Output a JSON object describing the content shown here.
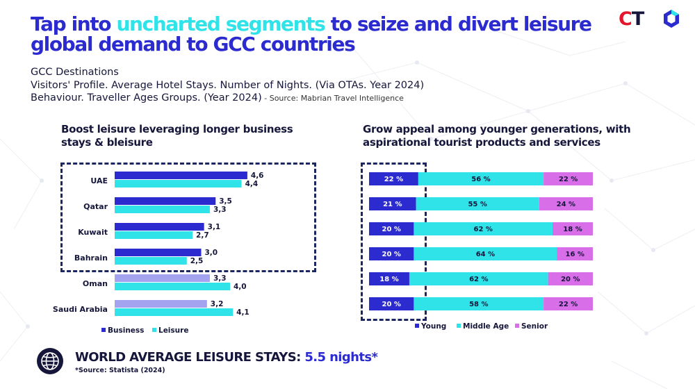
{
  "title": {
    "pre": "Tap into ",
    "highlight": "uncharted segments",
    "post": " to seize and divert leisure global demand to GCC countries"
  },
  "logo": {
    "c": "C",
    "t": "T"
  },
  "subtitle": {
    "line1": "GCC Destinations",
    "line2": "Visitors' Profile. Average Hotel Stays. Number of Nights. (Via OTAs. Year 2024)",
    "line3": "Behaviour. Traveller Ages Groups. (Year 2024)",
    "source": " - Source: Mabrian Travel Intelligence"
  },
  "left_heading": {
    "line1": "Boost leisure leveraging longer business",
    "line2": "stays & bleisure"
  },
  "right_heading": {
    "line1": "Grow appeal among younger generations, with",
    "line2": "aspirational tourist products and services"
  },
  "chart_data": [
    {
      "type": "bar",
      "orientation": "horizontal",
      "categories": [
        "UAE",
        "Qatar",
        "Kuwait",
        "Bahrain",
        "Oman",
        "Saudi Arabia"
      ],
      "series": [
        {
          "name": "Business",
          "values": [
            4.6,
            3.5,
            3.1,
            3.0,
            3.3,
            3.2
          ],
          "labels": [
            "4,6",
            "3,5",
            "3,1",
            "3,0",
            "3,3",
            "3,2"
          ]
        },
        {
          "name": "Leisure",
          "values": [
            4.4,
            3.3,
            2.7,
            2.5,
            4.0,
            4.1
          ],
          "labels": [
            "4,4",
            "3,3",
            "2,7",
            "2,5",
            "4,0",
            "4,1"
          ]
        }
      ],
      "highlighted_categories": [
        "UAE",
        "Qatar",
        "Kuwait",
        "Bahrain"
      ],
      "legend": "bottom",
      "colors": {
        "business": "#2b2bcf",
        "leisure": "#2fe3e8",
        "business_muted": "#a3a3ef",
        "leisure_muted": "#2fe3e8"
      }
    },
    {
      "type": "bar",
      "orientation": "horizontal",
      "stacked": true,
      "percent": true,
      "rows": 6,
      "series": [
        {
          "name": "Young",
          "values": [
            22,
            21,
            20,
            20,
            18,
            20
          ],
          "labels": [
            "22 %",
            "21 %",
            "20 %",
            "20 %",
            "18 %",
            "20 %"
          ]
        },
        {
          "name": "Middle Age",
          "values": [
            56,
            55,
            62,
            64,
            62,
            58
          ],
          "labels": [
            "56 %",
            "55 %",
            "62 %",
            "64 %",
            "62 %",
            "58 %"
          ]
        },
        {
          "name": "Senior",
          "values": [
            22,
            24,
            18,
            16,
            20,
            22
          ],
          "labels": [
            "22 %",
            "24 %",
            "18 %",
            "16 %",
            "20 %",
            "22 %"
          ]
        }
      ],
      "legend": "bottom",
      "colors": {
        "young": "#2b2bcf",
        "middle": "#2fe3e8",
        "senior": "#d86ee8"
      }
    }
  ],
  "footer": {
    "label": "WORLD AVERAGE LEISURE STAYS: ",
    "value": "5.5 nights*",
    "source": "*Source: Statista (2024)"
  }
}
